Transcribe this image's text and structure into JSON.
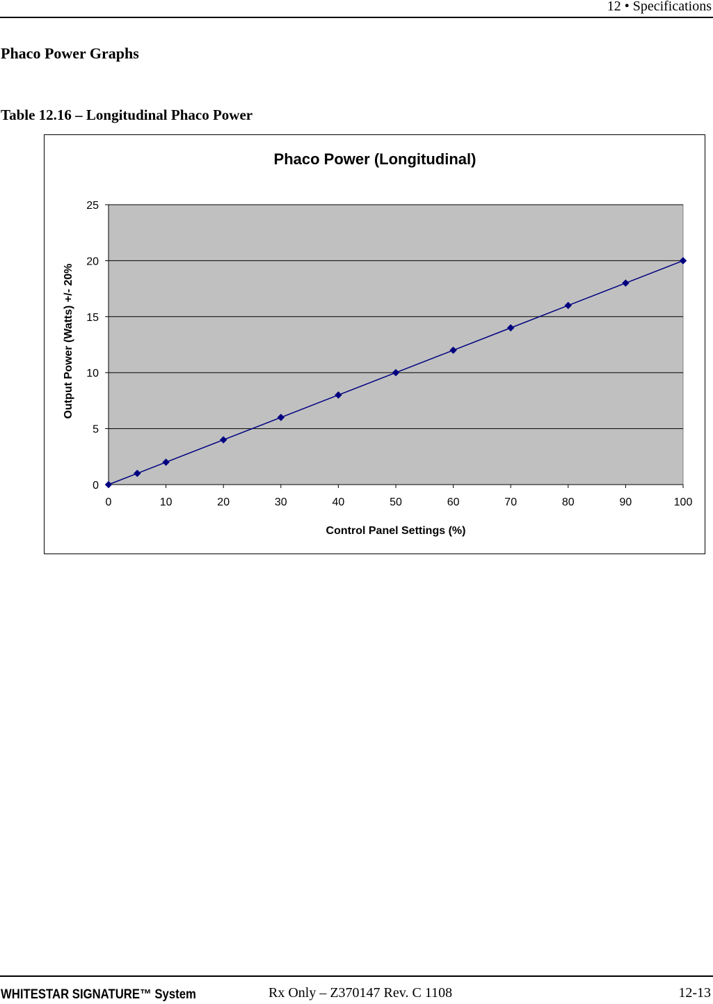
{
  "header": {
    "text": "12  • Specifications"
  },
  "section_title": "Phaco Power Graphs",
  "table_caption": "Table 12.16 – Longitudinal Phaco Power",
  "chart_data": {
    "type": "line",
    "title": "Phaco Power (Longitudinal)",
    "xlabel": "Control Panel Settings (%)",
    "ylabel": "Output Power (Watts) +/- 20%",
    "xlim": [
      0,
      100
    ],
    "ylim": [
      0,
      25
    ],
    "xticks": [
      0,
      10,
      20,
      30,
      40,
      50,
      60,
      70,
      80,
      90,
      100
    ],
    "yticks": [
      0,
      5,
      10,
      15,
      20,
      25
    ],
    "grid": "horizontal",
    "legend": "none",
    "plot_background": "#c0c0c0",
    "line_color": "#000080",
    "series": [
      {
        "x": [
          0,
          5,
          10,
          20,
          30,
          40,
          50,
          60,
          70,
          80,
          90,
          100
        ],
        "y": [
          0,
          1,
          2,
          4,
          6,
          8,
          10,
          12,
          14,
          16,
          18,
          20
        ]
      }
    ]
  },
  "footer": {
    "product": "WHITESTAR SIGNATURE™ System",
    "rx": "Rx Only – Z370147 Rev. C 1108",
    "page": "12-13"
  }
}
